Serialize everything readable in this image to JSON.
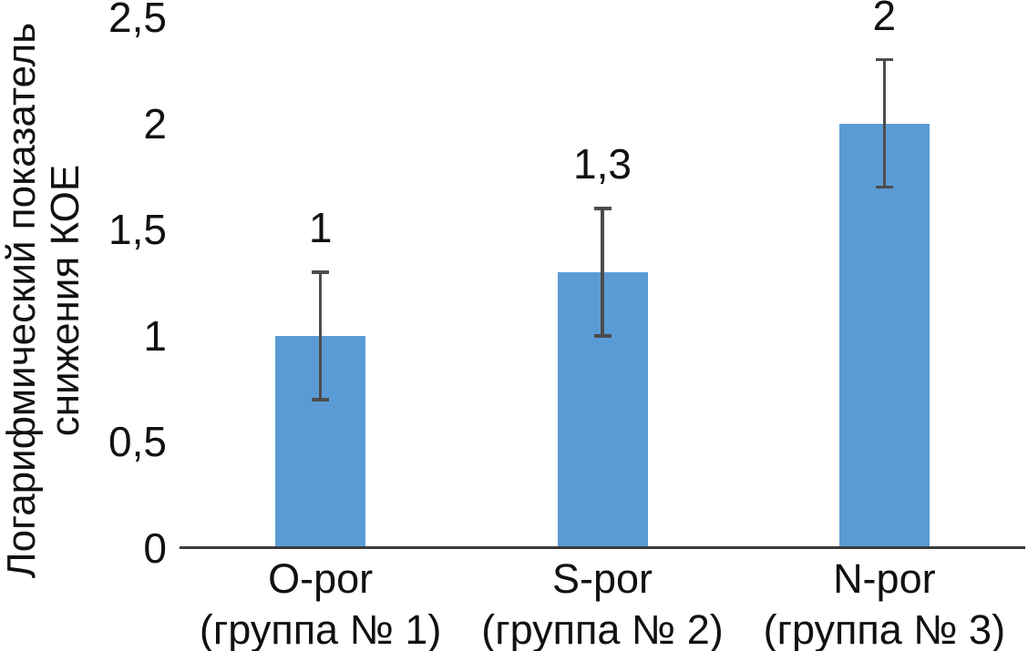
{
  "figure": {
    "background": "#ffffff"
  },
  "chart_data": {
    "type": "bar",
    "title": "",
    "xlabel": "",
    "ylabel": "Логарифмический показатель снижения КОЕ",
    "ylabel_lines": [
      "Логарифмический показатель",
      "снижения КОЕ"
    ],
    "categories": [
      {
        "name": "O-por",
        "group": "(группа № 1)"
      },
      {
        "name": "S-por",
        "group": "(группа № 2)"
      },
      {
        "name": "N-por",
        "group": "(группа № 3)"
      }
    ],
    "values": [
      1,
      1.3,
      2
    ],
    "value_labels": [
      "1",
      "1,3",
      "2"
    ],
    "errors": [
      0.3,
      0.3,
      0.3
    ],
    "y_axis": {
      "min": 0,
      "max": 2.5,
      "step": 0.5,
      "tick_labels": [
        "0",
        "0,5",
        "1",
        "1,5",
        "2",
        "2,5"
      ]
    },
    "grid": false,
    "legend": "none",
    "colors": {
      "bar": "#5B9BD5",
      "error_bar": "#4d4d4d",
      "axis_line": "#3a3a3a",
      "text": "#111111"
    }
  }
}
